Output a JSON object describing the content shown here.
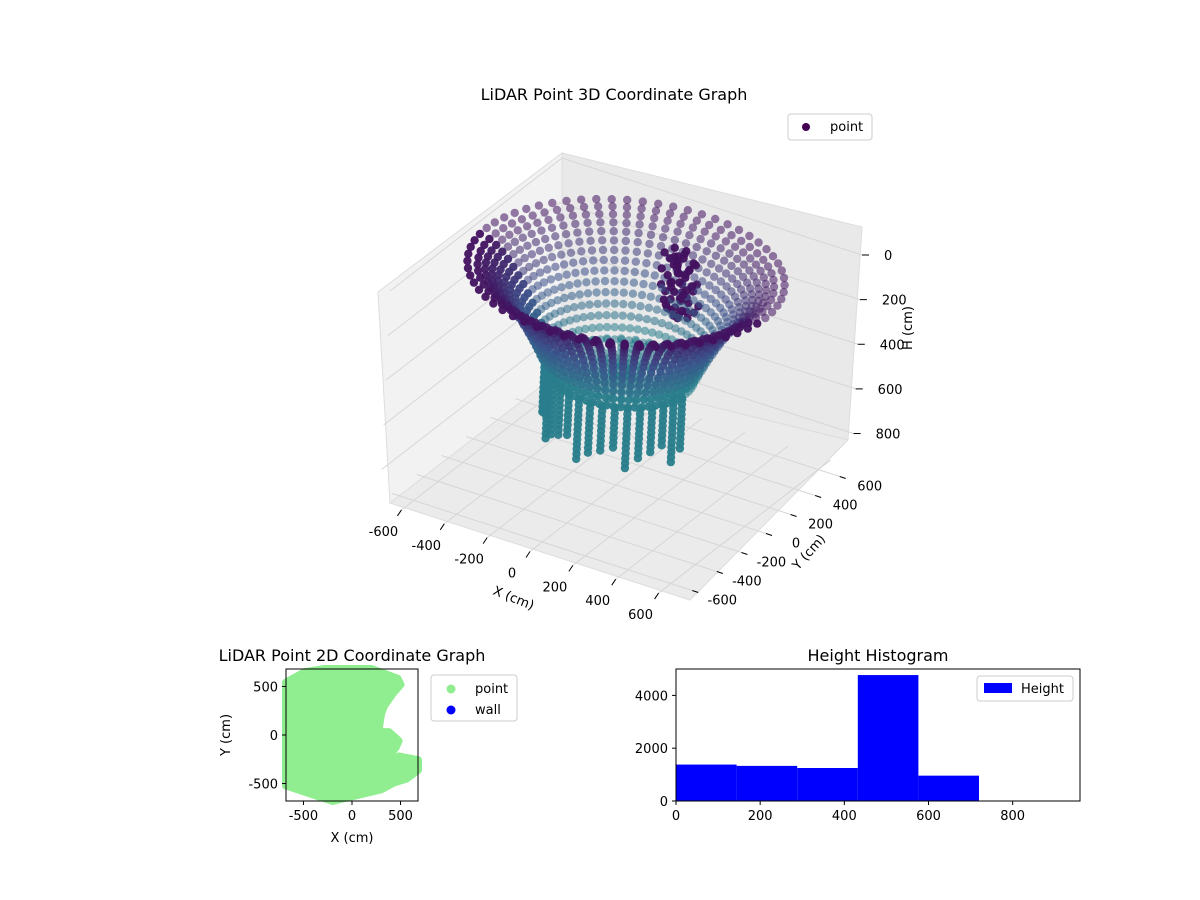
{
  "chart_data": [
    {
      "type": "scatter3d",
      "title": "LiDAR Point 3D Coordinate Graph",
      "xlabel": "X (cm)",
      "ylabel": "Y (cm)",
      "zlabel": "H (cm)",
      "xlim": [
        -700,
        700
      ],
      "ylim": [
        -700,
        700
      ],
      "zlim": [
        0,
        950
      ],
      "zinverted": true,
      "xticks": [
        -600,
        -400,
        -200,
        0,
        200,
        400,
        600
      ],
      "yticks": [
        -600,
        -400,
        -200,
        0,
        200,
        400,
        600
      ],
      "zticks": [
        0,
        200,
        400,
        600,
        800
      ],
      "legend": {
        "position": "top-right",
        "entries": [
          {
            "label": "point",
            "color": "#440154"
          }
        ]
      },
      "colormap": "viridis",
      "series": [
        {
          "name": "point",
          "shape": "bowl",
          "rim_radius": 650,
          "rim_height": 0,
          "bottom_radius": 300,
          "bottom_height": 450,
          "wall_columns_height_range": [
            450,
            720
          ]
        }
      ]
    },
    {
      "type": "scatter",
      "title": "LiDAR Point 2D Coordinate Graph",
      "xlabel": "X (cm)",
      "ylabel": "Y (cm)",
      "xlim": [
        -680,
        680
      ],
      "ylim": [
        -680,
        680
      ],
      "xticks": [
        -500,
        0,
        500
      ],
      "yticks": [
        -500,
        0,
        500
      ],
      "legend": {
        "position": "outside-right",
        "entries": [
          {
            "label": "point",
            "color": "#90ee90"
          },
          {
            "label": "wall",
            "color": "#0000ff"
          }
        ]
      },
      "series": [
        {
          "name": "point",
          "color": "#90ee90",
          "outline": [
            [
              -480,
              650
            ],
            [
              -280,
              680
            ],
            [
              200,
              680
            ],
            [
              470,
              580
            ],
            [
              500,
              520
            ],
            [
              420,
              430
            ],
            [
              330,
              300
            ],
            [
              300,
              220
            ],
            [
              270,
              30
            ],
            [
              380,
              30
            ],
            [
              480,
              -60
            ],
            [
              450,
              -130
            ],
            [
              400,
              -180
            ],
            [
              430,
              -250
            ],
            [
              480,
              -220
            ],
            [
              680,
              -260
            ],
            [
              680,
              -360
            ],
            [
              560,
              -450
            ],
            [
              430,
              -490
            ],
            [
              300,
              -560
            ],
            [
              -200,
              -680
            ],
            [
              -680,
              -520
            ],
            [
              -680,
              540
            ]
          ]
        },
        {
          "name": "wall",
          "color": "#0000ff",
          "outline": []
        }
      ]
    },
    {
      "type": "histogram",
      "title": "Height Histogram",
      "xlim": [
        0,
        960
      ],
      "ylim": [
        0,
        5000
      ],
      "xticks": [
        0,
        200,
        400,
        600,
        800
      ],
      "yticks": [
        0,
        2000,
        4000
      ],
      "legend": {
        "position": "top-right",
        "entries": [
          {
            "label": "Height",
            "color": "#0000ff"
          }
        ]
      },
      "series": [
        {
          "name": "Height",
          "color": "#0000ff",
          "bins": [
            0,
            144,
            288,
            432,
            576,
            720,
            864
          ],
          "counts": [
            1380,
            1330,
            1250,
            4770,
            960,
            0
          ]
        }
      ]
    }
  ]
}
